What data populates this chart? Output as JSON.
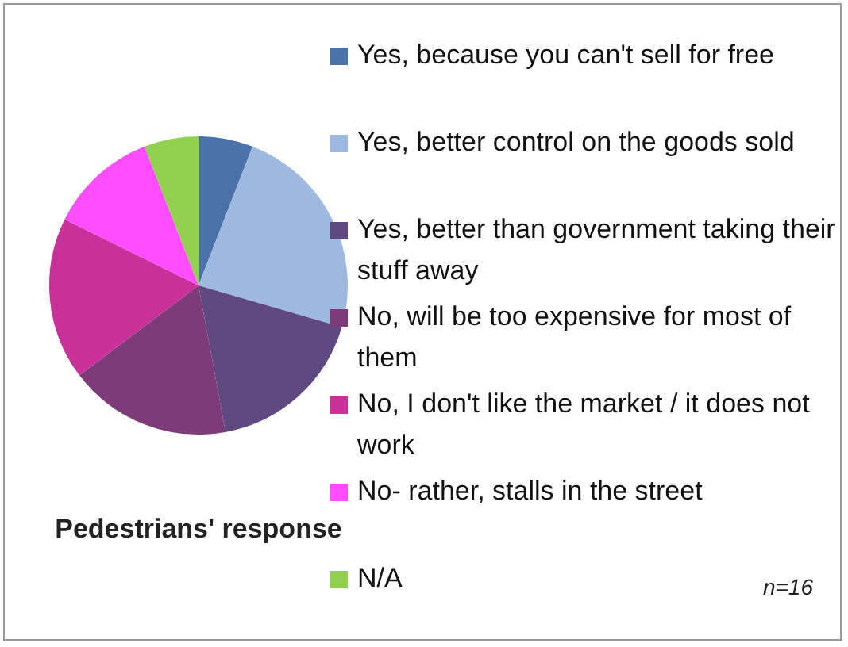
{
  "chart_data": {
    "type": "pie",
    "title": "Pedestrians' response",
    "categories": [
      "Yes, because you can't sell for free",
      "Yes, better control on the goods sold",
      "Yes, better than government taking their stuff away",
      "No, will be too expensive for most of them",
      "No, I don't like the market / it does not work",
      "No- rather, stalls in the street",
      "N/A"
    ],
    "values": [
      5.9,
      23.6,
      17.6,
      17.6,
      17.6,
      11.8,
      5.9
    ],
    "colors": [
      "#4a72a8",
      "#9db9e0",
      "#5e4a80",
      "#7d3c78",
      "#c9309a",
      "#ff4cff",
      "#92d050"
    ],
    "legend": "right",
    "annotations": [
      "n=16"
    ]
  }
}
